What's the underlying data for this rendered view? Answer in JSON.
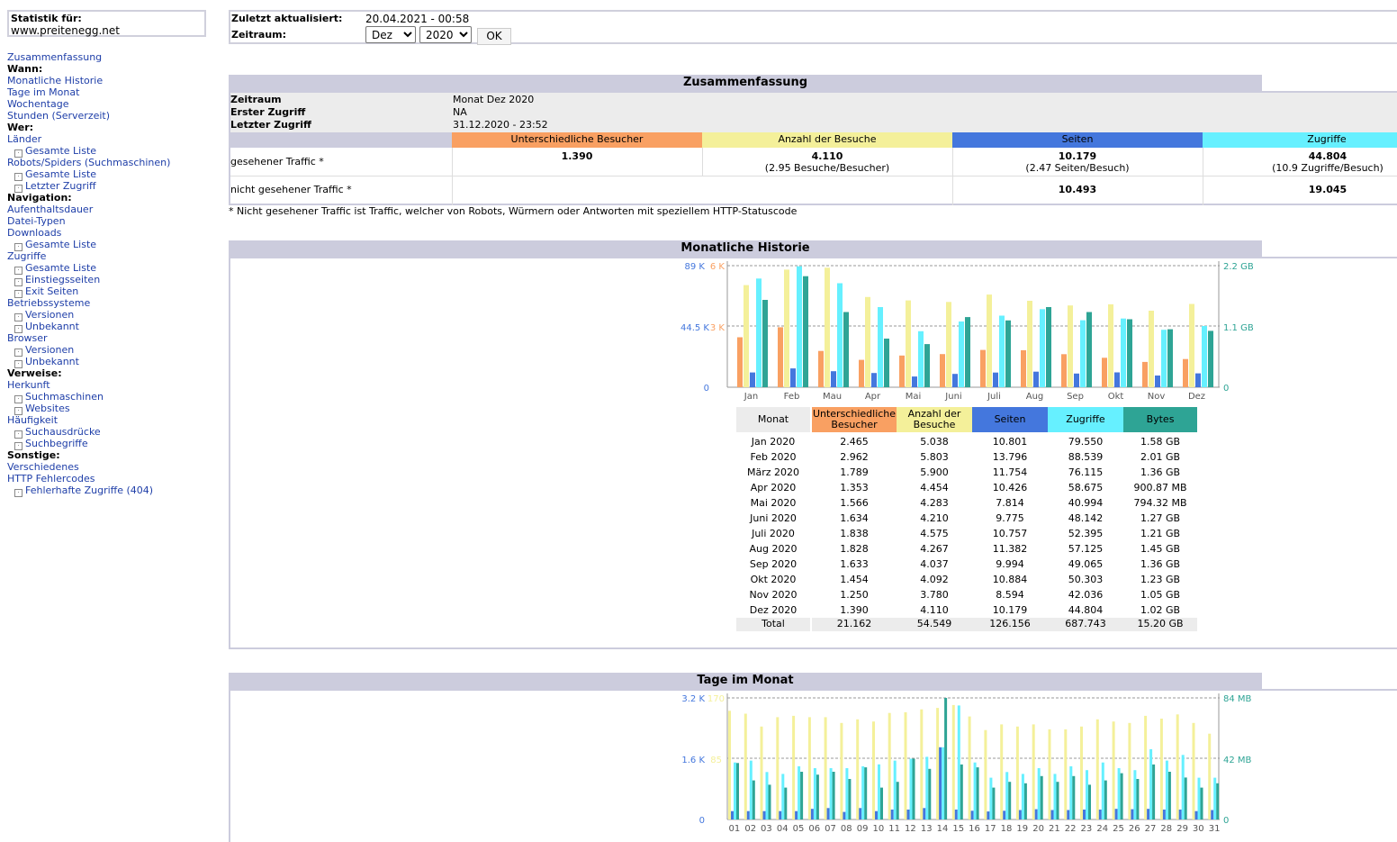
{
  "sidebar": {
    "stat_label": "Statistik für:",
    "site": "www.preitenegg.net",
    "menu": [
      {
        "t": "link",
        "text": "Zusammenfassung"
      },
      {
        "t": "head",
        "text": "Wann:"
      },
      {
        "t": "link",
        "text": "Monatliche Historie"
      },
      {
        "t": "link",
        "text": "Tage im Monat"
      },
      {
        "t": "link",
        "text": "Wochentage"
      },
      {
        "t": "link",
        "text": "Stunden (Serverzeit)"
      },
      {
        "t": "head",
        "text": "Wer:"
      },
      {
        "t": "link",
        "text": "Länder"
      },
      {
        "t": "sub",
        "text": "Gesamte Liste"
      },
      {
        "t": "link",
        "text": "Robots/Spiders (Suchmaschinen)"
      },
      {
        "t": "sub",
        "text": "Gesamte Liste"
      },
      {
        "t": "sub",
        "text": "Letzter Zugriff"
      },
      {
        "t": "head",
        "text": "Navigation:"
      },
      {
        "t": "link",
        "text": "Aufenthaltsdauer"
      },
      {
        "t": "link",
        "text": "Datei-Typen"
      },
      {
        "t": "link",
        "text": "Downloads"
      },
      {
        "t": "sub",
        "text": "Gesamte Liste"
      },
      {
        "t": "link",
        "text": "Zugriffe"
      },
      {
        "t": "sub",
        "text": "Gesamte Liste"
      },
      {
        "t": "sub",
        "text": "Einstiegsseiten"
      },
      {
        "t": "sub",
        "text": "Exit Seiten"
      },
      {
        "t": "link",
        "text": "Betriebssysteme"
      },
      {
        "t": "sub",
        "text": "Versionen"
      },
      {
        "t": "sub",
        "text": "Unbekannt"
      },
      {
        "t": "link",
        "text": "Browser"
      },
      {
        "t": "sub",
        "text": "Versionen"
      },
      {
        "t": "sub",
        "text": "Unbekannt"
      },
      {
        "t": "head",
        "text": "Verweise:"
      },
      {
        "t": "link",
        "text": "Herkunft"
      },
      {
        "t": "sub",
        "text": "Suchmaschinen"
      },
      {
        "t": "sub",
        "text": "Websites"
      },
      {
        "t": "link",
        "text": "Häufigkeit"
      },
      {
        "t": "sub",
        "text": "Suchausdrücke"
      },
      {
        "t": "sub",
        "text": "Suchbegriffe"
      },
      {
        "t": "head",
        "text": "Sonstige:"
      },
      {
        "t": "link",
        "text": "Verschiedenes"
      },
      {
        "t": "link",
        "text": "HTTP Fehlercodes"
      },
      {
        "t": "sub",
        "text": "Fehlerhafte Zugriffe (404)"
      }
    ]
  },
  "top": {
    "updated_label": "Zuletzt aktualisiert:",
    "updated_value": "20.04.2021 - 00:58",
    "period_label": "Zeitraum:",
    "month_selected": "Dez",
    "year_selected": "2020",
    "ok_label": "OK"
  },
  "colors": {
    "visitors": "#f9a062",
    "visits": "#f4f09a",
    "pages": "#4477dd",
    "hits": "#66f0ff",
    "bytes": "#2ea495",
    "title_bg": "#ccccdd",
    "info_bg": "#ececec"
  },
  "summary": {
    "title": "Zusammenfassung",
    "period_label": "Zeitraum",
    "period_value": "Monat Dez 2020",
    "first_label": "Erster Zugriff",
    "first_value": "NA",
    "last_label": "Letzter Zugriff",
    "last_value": "31.12.2020 - 23:52",
    "col_visitors": "Unterschiedliche Besucher",
    "col_visits": "Anzahl der Besuche",
    "col_pages": "Seiten",
    "col_hits": "Zugriffe",
    "seen_label": "gesehener Traffic *",
    "seen_visitors": "1.390",
    "seen_visits": "4.110",
    "seen_visits_sub": "(2.95 Besuche/Besucher)",
    "seen_pages": "10.179",
    "seen_pages_sub": "(2.47 Seiten/Besuch)",
    "seen_hits": "44.804",
    "seen_hits_sub": "(10.9 Zugriffe/Besuch)",
    "unseen_label": "nicht gesehener Traffic *",
    "unseen_pages": "10.493",
    "unseen_hits": "19.045",
    "footnote": "* Nicht gesehener Traffic ist Traffic, welcher von Robots, Würmern oder Antworten mit speziellem HTTP-Statuscode"
  },
  "monthly": {
    "title": "Monatliche Historie",
    "axis_left_hits_top": "89 K",
    "axis_left_hits_mid": "44.5 K",
    "axis_left_visits_top": "6 K",
    "axis_left_visits_mid": "3 K",
    "axis_zero": "0",
    "axis_right_top": "2.2 GB",
    "axis_right_mid": "1.1 GB",
    "axis_right_zero": "0",
    "table_headers": [
      "Monat",
      "Unterschiedliche Besucher",
      "Anzahl der Besuche",
      "Seiten",
      "Zugriffe",
      "Bytes"
    ],
    "rows": [
      [
        "Jan 2020",
        "2.465",
        "5.038",
        "10.801",
        "79.550",
        "1.58 GB"
      ],
      [
        "Feb 2020",
        "2.962",
        "5.803",
        "13.796",
        "88.539",
        "2.01 GB"
      ],
      [
        "März 2020",
        "1.789",
        "5.900",
        "11.754",
        "76.115",
        "1.36 GB"
      ],
      [
        "Apr 2020",
        "1.353",
        "4.454",
        "10.426",
        "58.675",
        "900.87 MB"
      ],
      [
        "Mai 2020",
        "1.566",
        "4.283",
        "7.814",
        "40.994",
        "794.32 MB"
      ],
      [
        "Juni 2020",
        "1.634",
        "4.210",
        "9.775",
        "48.142",
        "1.27 GB"
      ],
      [
        "Juli 2020",
        "1.838",
        "4.575",
        "10.757",
        "52.395",
        "1.21 GB"
      ],
      [
        "Aug 2020",
        "1.828",
        "4.267",
        "11.382",
        "57.125",
        "1.45 GB"
      ],
      [
        "Sep 2020",
        "1.633",
        "4.037",
        "9.994",
        "49.065",
        "1.36 GB"
      ],
      [
        "Okt 2020",
        "1.454",
        "4.092",
        "10.884",
        "50.303",
        "1.23 GB"
      ],
      [
        "Nov 2020",
        "1.250",
        "3.780",
        "8.594",
        "42.036",
        "1.05 GB"
      ],
      [
        "Dez 2020",
        "1.390",
        "4.110",
        "10.179",
        "44.804",
        "1.02 GB"
      ]
    ],
    "total": [
      "Total",
      "21.162",
      "54.549",
      "126.156",
      "687.743",
      "15.20 GB"
    ]
  },
  "daily": {
    "title": "Tage im Monat",
    "axis_left_top": "3.2 K",
    "axis_left_mid": "1.6 K",
    "axis_left_visits_top": "170",
    "axis_left_visits_mid": "85",
    "axis_zero": "0",
    "axis_right_top": "84 MB",
    "axis_right_mid": "42 MB",
    "axis_right_zero": "0"
  },
  "chart_data": [
    {
      "type": "bar",
      "title": "Monatliche Historie",
      "categories": [
        "Jan",
        "Feb",
        "Mau",
        "Apr",
        "Mai",
        "Juni",
        "Juli",
        "Aug",
        "Sep",
        "Okt",
        "Nov",
        "Dez"
      ],
      "series": [
        {
          "name": "Unterschiedliche Besucher",
          "values": [
            2465,
            2962,
            1789,
            1353,
            1566,
            1634,
            1838,
            1828,
            1633,
            1454,
            1250,
            1390
          ],
          "axis": "visits",
          "max": 6000
        },
        {
          "name": "Anzahl der Besuche",
          "values": [
            5038,
            5803,
            5900,
            4454,
            4283,
            4210,
            4575,
            4267,
            4037,
            4092,
            3780,
            4110
          ],
          "axis": "visits",
          "max": 6000
        },
        {
          "name": "Seiten",
          "values": [
            10801,
            13796,
            11754,
            10426,
            7814,
            9775,
            10757,
            11382,
            9994,
            10884,
            8594,
            10179
          ],
          "axis": "hits",
          "max": 89000
        },
        {
          "name": "Zugriffe",
          "values": [
            79550,
            88539,
            76115,
            58675,
            40994,
            48142,
            52395,
            57125,
            49065,
            50303,
            42036,
            44804
          ],
          "axis": "hits",
          "max": 89000
        },
        {
          "name": "Bytes",
          "values": [
            1.58,
            2.01,
            1.36,
            0.88,
            0.78,
            1.27,
            1.21,
            1.45,
            1.36,
            1.23,
            1.05,
            1.02
          ],
          "unit": "GB",
          "axis": "bytes",
          "max": 2.2
        }
      ]
    },
    {
      "type": "bar",
      "title": "Tage im Monat",
      "categories": [
        "01",
        "02",
        "03",
        "04",
        "05",
        "06",
        "07",
        "08",
        "09",
        "10",
        "11",
        "12",
        "13",
        "14",
        "15",
        "16",
        "17",
        "18",
        "19",
        "20",
        "21",
        "22",
        "23",
        "24",
        "25",
        "26",
        "27",
        "28",
        "29",
        "30",
        "31"
      ],
      "series": [
        {
          "name": "Anzahl der Besuche",
          "values": [
            152,
            148,
            130,
            143,
            145,
            143,
            143,
            135,
            140,
            137,
            149,
            150,
            154,
            156,
            160,
            144,
            125,
            133,
            130,
            133,
            126,
            126,
            130,
            140,
            137,
            135,
            145,
            141,
            147,
            135,
            120
          ],
          "max": 170
        },
        {
          "name": "Seiten",
          "values": [
            220,
            220,
            220,
            220,
            220,
            280,
            300,
            200,
            300,
            220,
            260,
            260,
            300,
            1900,
            260,
            230,
            210,
            230,
            250,
            270,
            250,
            250,
            260,
            260,
            280,
            270,
            280,
            260,
            260,
            220,
            250
          ],
          "max": 3200
        },
        {
          "name": "Zugriffe",
          "values": [
            1500,
            1550,
            1250,
            1200,
            1400,
            1350,
            1350,
            1350,
            1400,
            1450,
            1550,
            1600,
            1650,
            1900,
            3000,
            1500,
            1100,
            1250,
            1200,
            1350,
            1200,
            1400,
            1300,
            1500,
            1350,
            1300,
            1850,
            1550,
            1700,
            1100,
            1100
          ],
          "max": 3200
        },
        {
          "name": "Bytes",
          "values": [
            39,
            27,
            24,
            22,
            33,
            31,
            33,
            28,
            36,
            22,
            26,
            42,
            35,
            84,
            38,
            36,
            22,
            26,
            25,
            30,
            26,
            30,
            24,
            27,
            32,
            28,
            38,
            33,
            29,
            22,
            25
          ],
          "unit": "MB",
          "max": 84
        }
      ]
    }
  ]
}
